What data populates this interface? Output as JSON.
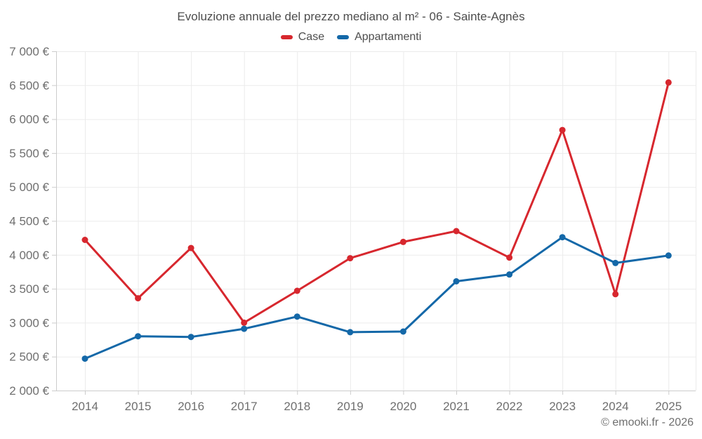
{
  "footer": {
    "credit": "© emooki.fr - 2026"
  },
  "chart_data": {
    "type": "line",
    "title": "Evoluzione annuale del prezzo mediano al m² - 06 - Sainte-Agnès",
    "categories": [
      "2014",
      "2015",
      "2016",
      "2017",
      "2018",
      "2019",
      "2020",
      "2021",
      "2022",
      "2023",
      "2024",
      "2025"
    ],
    "series": [
      {
        "name": "Case",
        "color": "#d7272e",
        "values": [
          4220,
          3360,
          4100,
          3000,
          3470,
          3950,
          4190,
          4350,
          3960,
          5840,
          3420,
          6540
        ]
      },
      {
        "name": "Appartamenti",
        "color": "#1468a8",
        "values": [
          2470,
          2800,
          2790,
          2910,
          3090,
          2860,
          2870,
          3610,
          3710,
          4260,
          3880,
          3990
        ]
      }
    ],
    "xlabel": "",
    "ylabel": "",
    "ylim": [
      2000,
      7000
    ],
    "ytick_values": [
      2000,
      2500,
      3000,
      3500,
      4000,
      4500,
      5000,
      5500,
      6000,
      6500,
      7000
    ],
    "ytick_labels": [
      "2 000 €",
      "2 500 €",
      "3 000 €",
      "3 500 €",
      "4 000 €",
      "4 500 €",
      "5 000 €",
      "5 500 €",
      "6 000 €",
      "6 500 €",
      "7 000 €"
    ],
    "grid": true,
    "legend_position": "top",
    "colors": {
      "grid": "#ebebeb",
      "axis": "#cccccc",
      "title_text": "#4d4d4d",
      "axis_text": "#6f6f6f",
      "background": "#ffffff"
    }
  }
}
